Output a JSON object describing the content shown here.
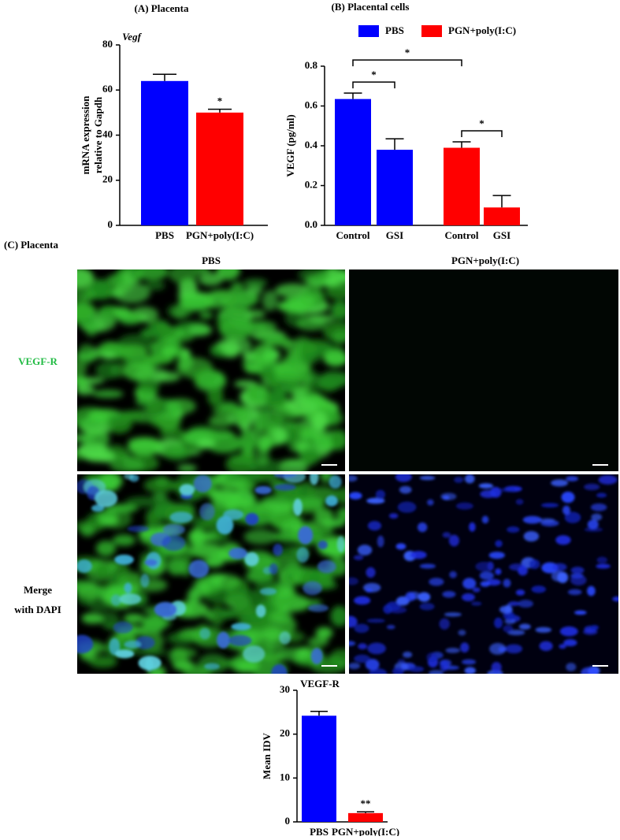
{
  "chart_data": [
    {
      "type": "bar",
      "title": "(A) Placenta",
      "subtitle": "Vegf",
      "y_label": [
        "mRNA expression",
        "relative to Gapdh"
      ],
      "categories": [
        "PBS",
        "PGN+poly(I:C)"
      ],
      "values": [
        64,
        50
      ],
      "errors": [
        3,
        1.5
      ],
      "colors": [
        "#0000ff",
        "#ff0000"
      ],
      "ylim": [
        0,
        80
      ],
      "yticks": [
        0,
        20,
        40,
        60,
        80
      ],
      "annotations": [
        {
          "x": "PGN+poly(I:C)",
          "text": "*"
        }
      ]
    },
    {
      "type": "bar",
      "title": "(B) Placental cells",
      "y_label": [
        "VEGF (pg/ml)"
      ],
      "categories": [
        "Control",
        "GSI",
        "Control",
        "GSI"
      ],
      "series": [
        {
          "name": "PBS",
          "color": "#0000ff",
          "values": [
            0.635,
            0.38,
            null,
            null
          ],
          "errors": [
            0.03,
            0.055,
            null,
            null
          ]
        },
        {
          "name": "PGN+poly(I:C)",
          "color": "#ff0000",
          "values": [
            null,
            null,
            0.39,
            0.09
          ],
          "errors": [
            null,
            null,
            0.03,
            0.06
          ]
        }
      ],
      "ylim": [
        0,
        0.8
      ],
      "yticks": [
        {
          "value": 0,
          "label": "0.0"
        },
        0.2,
        0.4,
        0.6,
        0.8
      ],
      "legend": "top",
      "significance": [
        {
          "from": 0,
          "to": 1,
          "text": "*"
        },
        {
          "from": 0,
          "to": 2,
          "text": "*"
        },
        {
          "from": 2,
          "to": 3,
          "text": "*"
        }
      ]
    },
    {
      "type": "bar",
      "title": "VEGF-R",
      "y_label": [
        "Mean IDV"
      ],
      "categories": [
        "PBS",
        "PGN+poly(I:C)"
      ],
      "values": [
        24.2,
        2.0
      ],
      "errors": [
        1,
        0.3
      ],
      "colors": [
        "#0000ff",
        "#ff0000"
      ],
      "ylim": [
        0,
        30
      ],
      "yticks": [
        0,
        10,
        20,
        30
      ],
      "annotations": [
        {
          "x": "PGN+poly(I:C)",
          "text": "**"
        }
      ]
    }
  ],
  "panel_c": {
    "title": "(C) Placenta",
    "column_labels": [
      "PBS",
      "PGN+poly(I:C)"
    ],
    "row_labels": [
      [
        "VEGF-R"
      ],
      [
        "Merge",
        "with DAPI"
      ]
    ]
  }
}
